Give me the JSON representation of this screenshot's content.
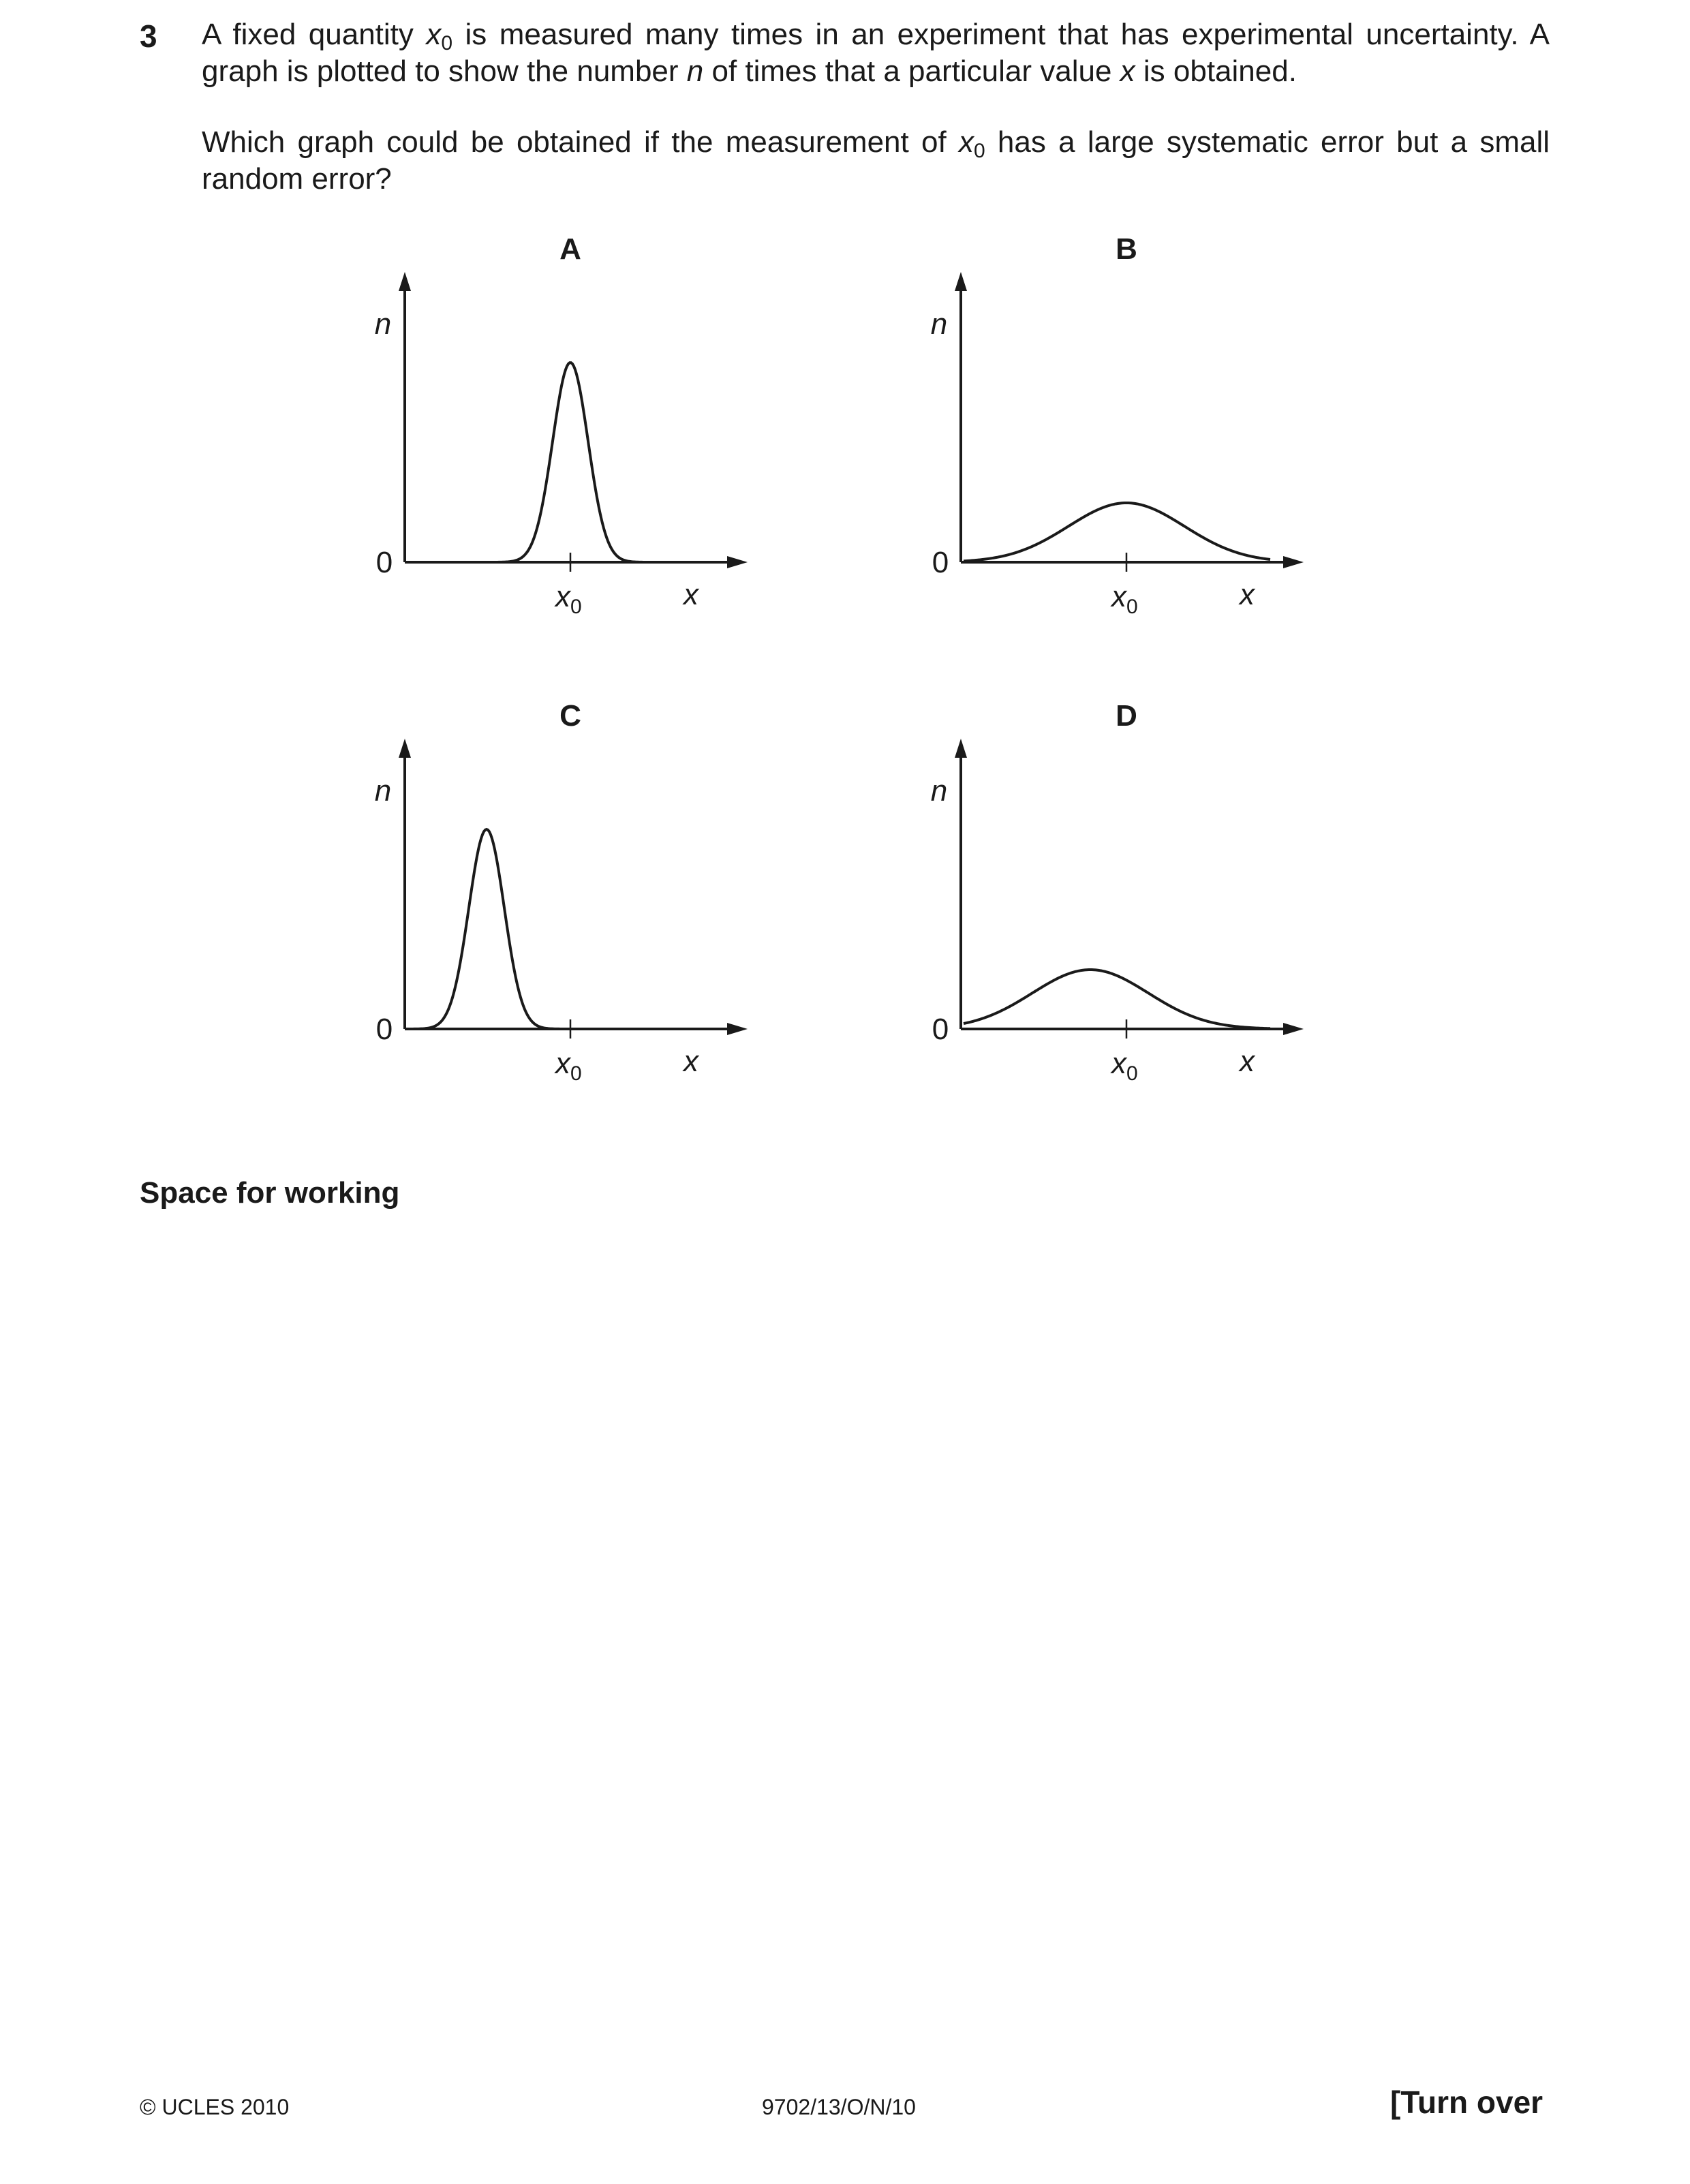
{
  "question": {
    "number": "3",
    "p1": {
      "a": "A fixed quantity ",
      "var1": "x",
      "sub1": "0",
      "b": " is measured many times in an experiment that has experimental uncertainty. A graph is plotted to show the number ",
      "var2": "n",
      "c": " of times that a particular value ",
      "var3": "x",
      "d": " is obtained."
    },
    "p2": {
      "a": "Which graph could be obtained if the measurement of ",
      "var1": "x",
      "sub1": "0",
      "b": " has a large systematic error but a small random error?"
    }
  },
  "graph_labels": {
    "y_axis": "n",
    "origin": "0",
    "x_axis": "x",
    "tick_var": "x",
    "tick_sub": "0"
  },
  "chart_data": [
    {
      "type": "line",
      "title": "A",
      "peak_position": "at x0",
      "spread": "narrow",
      "peak_height": "high"
    },
    {
      "type": "line",
      "title": "B",
      "peak_position": "at x0",
      "spread": "wide",
      "peak_height": "low"
    },
    {
      "type": "line",
      "title": "C",
      "peak_position": "below x0",
      "spread": "narrow",
      "peak_height": "high"
    },
    {
      "type": "line",
      "title": "D",
      "peak_position": "below x0",
      "spread": "wide",
      "peak_height": "low"
    }
  ],
  "working_label": "Space for working",
  "footer": {
    "left": "© UCLES 2010",
    "center": "9702/13/O/N/10",
    "right": "[Turn over"
  }
}
